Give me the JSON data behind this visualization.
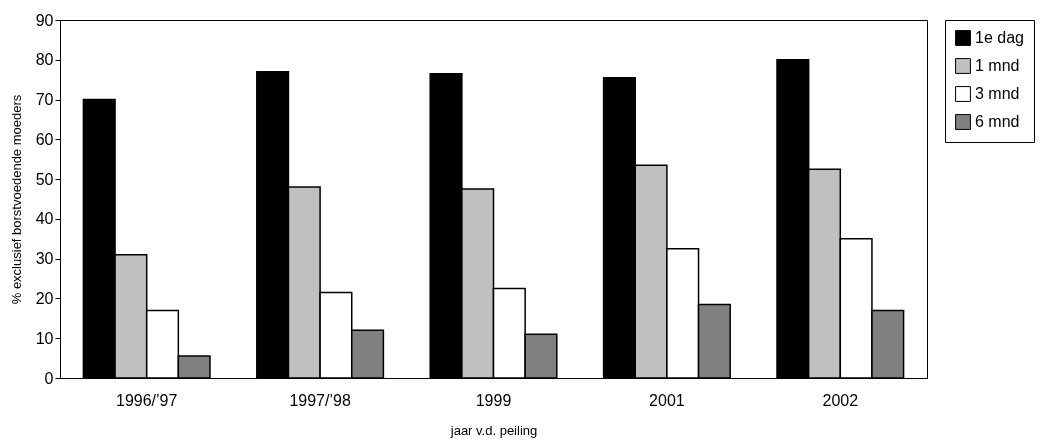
{
  "chart_data": {
    "type": "bar",
    "xlabel": "jaar v.d. peiling",
    "ylabel": "% exclusief borstvoedende moeders",
    "categories": [
      "1996/’97",
      "1997/’98",
      "1999",
      "2001",
      "2002"
    ],
    "series": [
      {
        "name": "1e dag",
        "color": "#000000",
        "values": [
          70,
          77,
          76.5,
          75.5,
          80
        ]
      },
      {
        "name": "1 mnd",
        "color": "#c0c0c0",
        "values": [
          31,
          48,
          47.5,
          53.5,
          52.5
        ]
      },
      {
        "name": "3 mnd",
        "color": "#ffffff",
        "values": [
          17,
          21.5,
          22.5,
          32.5,
          35
        ]
      },
      {
        "name": "6 mnd",
        "color": "#808080",
        "values": [
          5.5,
          12,
          11,
          18.5,
          17
        ]
      }
    ],
    "ylim": [
      0,
      90
    ],
    "yticks": [
      0,
      10,
      20,
      30,
      40,
      50,
      60,
      70,
      80,
      90
    ],
    "grid": false,
    "legend": "right"
  }
}
